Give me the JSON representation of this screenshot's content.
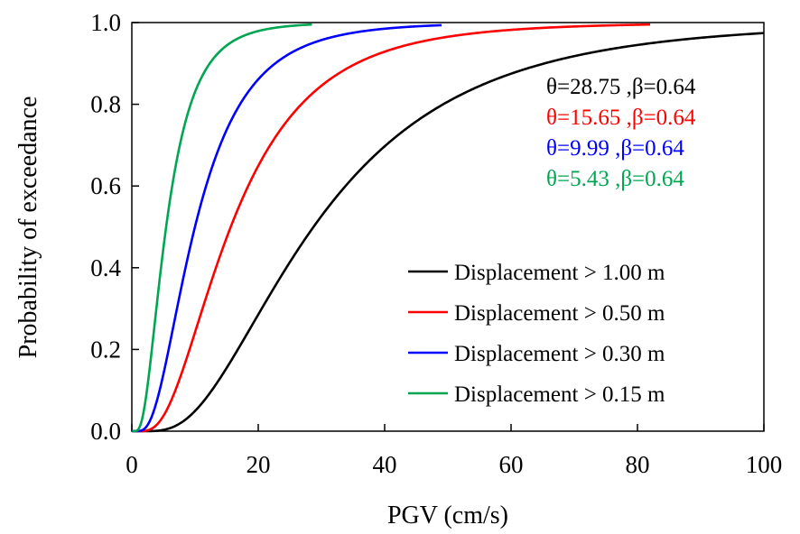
{
  "chart_data": {
    "type": "line",
    "xlabel": "PGV (cm/s)",
    "ylabel": "Probability of exceedance",
    "xlim": [
      0,
      100
    ],
    "ylim": [
      0,
      1.0
    ],
    "xticks": [
      "0",
      "20",
      "40",
      "60",
      "80",
      "100"
    ],
    "yticks": [
      "0.0",
      "0.2",
      "0.4",
      "0.6",
      "0.8",
      "1.0"
    ],
    "grid": false,
    "legend_position": "bottom-right",
    "series": [
      {
        "name": "Displacement > 1.00 m",
        "color": "#000000",
        "theta": 28.75,
        "beta": 0.64,
        "x_max": 100
      },
      {
        "name": "Displacement > 0.50 m",
        "color": "#ff0000",
        "theta": 15.65,
        "beta": 0.64,
        "x_max": 82
      },
      {
        "name": "Displacement > 0.30 m",
        "color": "#0000ff",
        "theta": 9.99,
        "beta": 0.64,
        "x_max": 49
      },
      {
        "name": "Displacement > 0.15 m",
        "color": "#00a651",
        "theta": 5.43,
        "beta": 0.64,
        "x_max": 28.5
      }
    ],
    "annotations": [
      {
        "text": "θ=28.75 ,β=0.64",
        "color": "#000000"
      },
      {
        "text": "θ=15.65 ,β=0.64",
        "color": "#ff0000"
      },
      {
        "text": "θ=9.99 ,β=0.64",
        "color": "#0000ff"
      },
      {
        "text": "θ=5.43 ,β=0.64",
        "color": "#00a651"
      }
    ]
  }
}
